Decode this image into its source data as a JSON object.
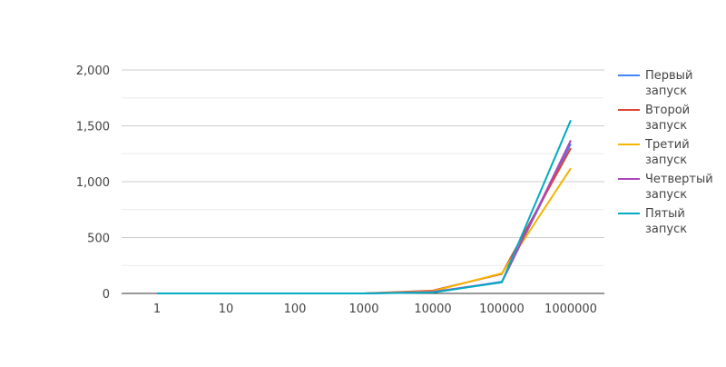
{
  "chart_data": {
    "type": "line",
    "title": "",
    "xlabel": "",
    "ylabel": "",
    "categories": [
      "1",
      "10",
      "100",
      "1000",
      "10000",
      "100000",
      "1000000"
    ],
    "ylim": [
      0,
      2000
    ],
    "yticks": [
      0,
      500,
      1000,
      1500,
      2000
    ],
    "ytick_labels": [
      "0",
      "500",
      "1,000",
      "1,500",
      "2,000"
    ],
    "grid": true,
    "legend_position": "right",
    "series": [
      {
        "name": "Первый запуск",
        "name_lines": [
          "Первый",
          "запуск"
        ],
        "color": "#4285F4",
        "values": [
          0,
          0,
          0,
          0,
          10,
          105,
          1340
        ]
      },
      {
        "name": "Второй запуск",
        "name_lines": [
          "Второй",
          "запуск"
        ],
        "color": "#DB4437",
        "values": [
          0,
          0,
          0,
          0,
          25,
          175,
          1300
        ]
      },
      {
        "name": "Третий запуск",
        "name_lines": [
          "Третий",
          "запуск"
        ],
        "color": "#F4B400",
        "values": [
          0,
          0,
          0,
          0,
          20,
          180,
          1120
        ]
      },
      {
        "name": "Четвертый запуск",
        "name_lines": [
          "Четвертый",
          "запуск"
        ],
        "color": "#AB47BC",
        "values": [
          0,
          0,
          0,
          0,
          15,
          100,
          1370
        ]
      },
      {
        "name": "Пятый запуск",
        "name_lines": [
          "Пятый",
          "запуск"
        ],
        "color": "#00ACC1",
        "values": [
          0,
          0,
          0,
          0,
          8,
          100,
          1550
        ]
      }
    ]
  }
}
